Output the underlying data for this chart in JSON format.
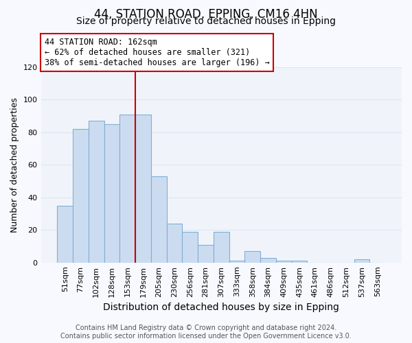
{
  "title": "44, STATION ROAD, EPPING, CM16 4HN",
  "subtitle": "Size of property relative to detached houses in Epping",
  "xlabel": "Distribution of detached houses by size in Epping",
  "ylabel": "Number of detached properties",
  "bar_labels": [
    "51sqm",
    "77sqm",
    "102sqm",
    "128sqm",
    "153sqm",
    "179sqm",
    "205sqm",
    "230sqm",
    "256sqm",
    "281sqm",
    "307sqm",
    "333sqm",
    "358sqm",
    "384sqm",
    "409sqm",
    "435sqm",
    "461sqm",
    "486sqm",
    "512sqm",
    "537sqm",
    "563sqm"
  ],
  "bar_values": [
    35,
    82,
    87,
    85,
    91,
    91,
    53,
    24,
    19,
    11,
    19,
    1,
    7,
    3,
    1,
    1,
    0,
    0,
    0,
    2,
    0
  ],
  "bar_color": "#ccdcf0",
  "bar_edgecolor": "#80afd4",
  "background_color": "#f8f9ff",
  "plot_bg_color": "#f0f4fa",
  "grid_color": "#dde5f0",
  "ylim": [
    0,
    120
  ],
  "yticks": [
    0,
    20,
    40,
    60,
    80,
    100,
    120
  ],
  "annotation_box_text": "44 STATION ROAD: 162sqm\n← 62% of detached houses are smaller (321)\n38% of semi-detached houses are larger (196) →",
  "annotation_box_color": "#ffffff",
  "annotation_box_edgecolor": "#cc0000",
  "vline_color": "#cc0000",
  "vline_x": 4.5,
  "footer_text": "Contains HM Land Registry data © Crown copyright and database right 2024.\nContains public sector information licensed under the Open Government Licence v3.0.",
  "title_fontsize": 12,
  "subtitle_fontsize": 10,
  "xlabel_fontsize": 10,
  "ylabel_fontsize": 9,
  "tick_fontsize": 8,
  "footer_fontsize": 7
}
